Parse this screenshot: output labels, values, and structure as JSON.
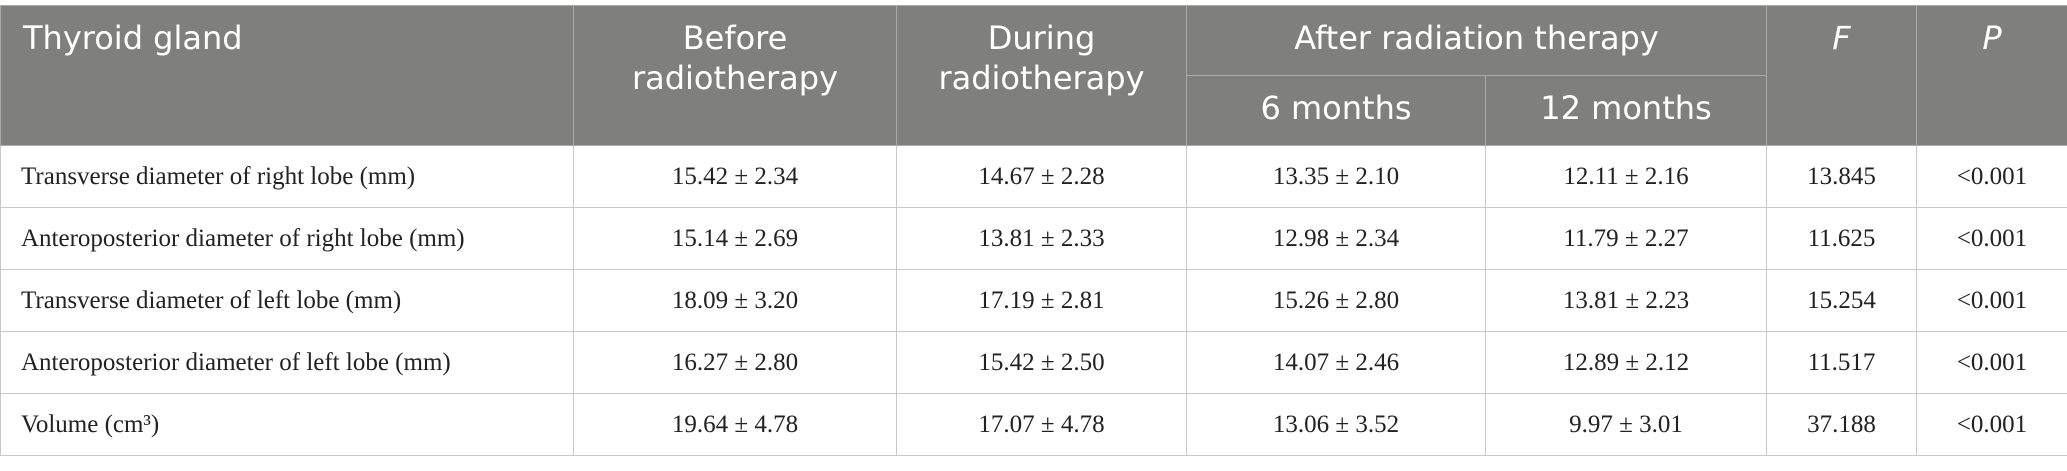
{
  "table": {
    "header": {
      "row_label": "Thyroid gland",
      "columns": [
        "Before radiotherapy",
        "During radiotherapy"
      ],
      "group": "After radiation therapy",
      "subcolumns": [
        "6 months",
        "12 months"
      ],
      "stats": [
        "F",
        "P"
      ]
    },
    "rows": [
      [
        "Transverse diameter of right lobe (mm)",
        "15.42 ± 2.34",
        "14.67 ± 2.28",
        "13.35 ± 2.10",
        "12.11 ± 2.16",
        "13.845",
        "<0.001"
      ],
      [
        "Anteroposterior diameter of right lobe (mm)",
        "15.14 ± 2.69",
        "13.81 ± 2.33",
        "12.98 ± 2.34",
        "11.79 ± 2.27",
        "11.625",
        "<0.001"
      ],
      [
        "Transverse diameter of left lobe (mm)",
        "18.09 ± 3.20",
        "17.19 ± 2.81",
        "15.26 ± 2.80",
        "13.81 ± 2.23",
        "15.254",
        "<0.001"
      ],
      [
        "Anteroposterior diameter of left lobe (mm)",
        "16.27 ± 2.80",
        "15.42 ± 2.50",
        "14.07 ± 2.46",
        "12.89 ± 2.12",
        "11.517",
        "<0.001"
      ],
      [
        "Volume (cm³)",
        "19.64 ± 4.78",
        "17.07 ± 4.78",
        "13.06 ± 3.52",
        "9.97 ± 3.01",
        "37.188",
        "<0.001"
      ]
    ]
  }
}
